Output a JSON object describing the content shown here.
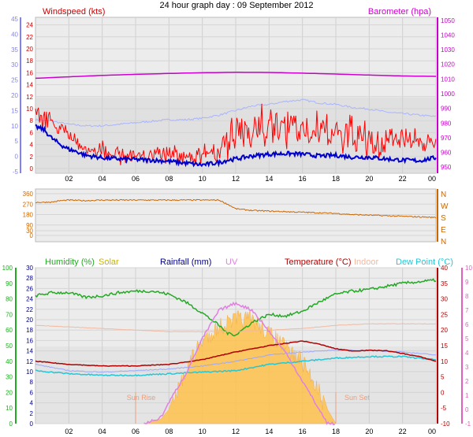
{
  "title": "24 hour graph day : 09 September 2012",
  "colors": {
    "wind": "#ff0000",
    "windAvg": "#0000cc",
    "barometer": "#cc00cc",
    "temp": "#b00000",
    "humidity": "#22aa22",
    "solar": "#c8b400",
    "rainfall": "#000080",
    "uv": "#e080e0",
    "indoor": "#f2b9a0",
    "dewpoint": "#22c8d8",
    "windDir": "#cc6600",
    "panelBg": "#ececec"
  },
  "chart_data": [
    {
      "type": "line",
      "title": "",
      "x_ticks": [
        "02",
        "04",
        "06",
        "08",
        "10",
        "12",
        "14",
        "16",
        "18",
        "20",
        "22",
        "00"
      ],
      "left_axis": {
        "label": "Windspeed (kts)",
        "range": [
          0,
          25
        ],
        "ticks": [
          0,
          2,
          4,
          6,
          8,
          10,
          12,
          14,
          16,
          18,
          20,
          22,
          24
        ]
      },
      "left_outer_axis": {
        "range": [
          -5,
          45
        ],
        "ticks": [
          -5,
          0,
          5,
          10,
          15,
          20,
          25,
          30,
          35,
          40,
          45
        ]
      },
      "right_axis": {
        "label": "Barometer (hpa)",
        "range": [
          949,
          1051
        ],
        "ticks": [
          950,
          960,
          970,
          980,
          990,
          1000,
          1010,
          1020,
          1030,
          1040,
          1050
        ]
      },
      "series": [
        {
          "name": "Windspeed (kts)",
          "style": "gust",
          "x": [
            0,
            0.5,
            1,
            1.5,
            2,
            2.5,
            3,
            4,
            5,
            6,
            7,
            8,
            9,
            10,
            11,
            11.5,
            12,
            13,
            14,
            15,
            16,
            17,
            18,
            19,
            20,
            21,
            22,
            23,
            24
          ],
          "values": [
            10,
            9,
            8.5,
            7,
            6,
            5,
            4,
            3.5,
            3,
            3,
            3,
            3,
            3,
            3,
            3.5,
            6,
            9,
            9.5,
            10,
            9.5,
            9.5,
            9,
            8.5,
            8,
            7,
            6.5,
            6,
            5.5,
            5
          ]
        },
        {
          "name": "Windspeed avg",
          "style": "average",
          "x": [
            0,
            0.5,
            1,
            1.5,
            2,
            2.5,
            3,
            4,
            5,
            6,
            7,
            8,
            9,
            10,
            11,
            11.5,
            12,
            13,
            14,
            15,
            16,
            17,
            18,
            19,
            20,
            21,
            22,
            23,
            24
          ],
          "values": [
            7,
            6.5,
            5,
            4,
            3.2,
            2.8,
            2.2,
            1.8,
            1.6,
            1.5,
            1.4,
            1.2,
            0.9,
            0.6,
            1,
            1.4,
            1.6,
            2.1,
            2.4,
            2.5,
            2.4,
            2.1,
            2.2,
            1.9,
            1.9,
            1.6,
            1.4,
            1.3,
            1.8
          ]
        },
        {
          "name": "Barometer (hpa)",
          "x": [
            0,
            2,
            4,
            6,
            8,
            10,
            12,
            14,
            16,
            18,
            20,
            22,
            24
          ],
          "values": [
            1010.5,
            1011.5,
            1012.5,
            1013.2,
            1013.8,
            1014.3,
            1014.6,
            1014.5,
            1014,
            1013.4,
            1012.7,
            1012.1,
            1011.8
          ]
        },
        {
          "name": "Light blue trace",
          "axis": "left_outer",
          "x": [
            0,
            1,
            2,
            3,
            4,
            5,
            6,
            7,
            8,
            9,
            10,
            11,
            12,
            13,
            14,
            15,
            16,
            17,
            18,
            19,
            20,
            21,
            22,
            23,
            24
          ],
          "values": [
            12,
            11.5,
            10.5,
            10,
            10,
            10.5,
            11,
            11.5,
            12,
            12,
            12.5,
            13.5,
            15,
            16.5,
            17,
            18,
            18.5,
            17.5,
            17,
            16,
            15.5,
            14.5,
            14,
            13.5,
            13
          ]
        }
      ]
    },
    {
      "type": "line",
      "title": "",
      "left_axis": {
        "range": [
          0,
          360
        ],
        "ticks": [
          0,
          30,
          90,
          180,
          270,
          360
        ]
      },
      "right_axis": {
        "tick_labels": [
          "N",
          "W",
          "S",
          "E",
          "N"
        ]
      },
      "series": [
        {
          "name": "Wind direction",
          "x": [
            0,
            1,
            1.5,
            2,
            3,
            4,
            5,
            6,
            7,
            8,
            9,
            10,
            11,
            11.5,
            12,
            13,
            14,
            15,
            16,
            17,
            18,
            19,
            20,
            21,
            22,
            23,
            24
          ],
          "values": [
            285,
            288,
            300,
            305,
            300,
            305,
            305,
            305,
            305,
            305,
            305,
            305,
            305,
            270,
            230,
            215,
            210,
            205,
            200,
            195,
            190,
            180,
            175,
            170,
            165,
            160,
            155
          ]
        }
      ]
    },
    {
      "type": "area",
      "title": "",
      "sunrise": "Sun Rise",
      "sunset": "Sun Set",
      "legend": [
        "Humidity (%)",
        "Solar",
        "Rainfall (mm)",
        "UV",
        "Temperature (°C)",
        "Indoor",
        "Dew Point (°C)"
      ],
      "axes": {
        "humidity": {
          "range": [
            0,
            100
          ],
          "ticks": [
            0,
            10,
            20,
            30,
            40,
            50,
            60,
            70,
            80,
            90,
            100
          ]
        },
        "rainfall": {
          "range": [
            0,
            30
          ],
          "ticks": [
            0,
            2,
            4,
            6,
            8,
            10,
            12,
            14,
            16,
            18,
            20,
            22,
            24,
            26,
            28,
            30
          ]
        },
        "temperature": {
          "range": [
            -10,
            40
          ],
          "ticks": [
            -10,
            -5,
            0,
            5,
            10,
            15,
            20,
            25,
            30,
            35,
            40
          ]
        },
        "uv": {
          "range": [
            -1,
            10
          ],
          "ticks": [
            -1,
            0,
            1,
            2,
            3,
            4,
            5,
            6,
            7,
            8,
            9,
            10
          ]
        }
      },
      "series": [
        {
          "name": "Humidity (%)",
          "axis": "humidity",
          "x": [
            0,
            1,
            2,
            3,
            4,
            5,
            6,
            7,
            8,
            9,
            10,
            11,
            11.5,
            12,
            12.5,
            13,
            14,
            15,
            16,
            17,
            18,
            19,
            20,
            21,
            22,
            23,
            24
          ],
          "values": [
            82,
            84,
            84,
            81,
            82,
            84,
            85,
            85,
            83,
            78,
            71,
            63,
            58,
            57,
            61,
            65,
            70,
            69,
            72,
            78,
            83,
            85,
            86,
            88,
            90,
            91,
            92
          ]
        },
        {
          "name": "Temperature (°C)",
          "axis": "temperature",
          "x": [
            0,
            2,
            4,
            6,
            8,
            10,
            12,
            14,
            16,
            17,
            18,
            19,
            20,
            21,
            22,
            23,
            24
          ],
          "values": [
            10,
            9,
            8.5,
            8.5,
            9,
            10.5,
            13,
            15,
            16.5,
            15.5,
            14,
            13.3,
            13.5,
            13.4,
            12.5,
            11.5,
            10
          ]
        },
        {
          "name": "Indoor",
          "axis": "temperature",
          "x": [
            0,
            2,
            4,
            6,
            8,
            10,
            12,
            14,
            16,
            18,
            20,
            22,
            24
          ],
          "values": [
            21.5,
            21,
            20.5,
            20,
            19.5,
            19.5,
            19.5,
            20,
            20.5,
            21.5,
            22,
            22,
            22
          ]
        },
        {
          "name": "Dew Point (°C)",
          "axis": "temperature",
          "x": [
            0,
            2,
            4,
            6,
            8,
            10,
            12,
            14,
            16,
            18,
            20,
            22,
            24
          ],
          "values": [
            7,
            6,
            5.5,
            5.5,
            6,
            6.5,
            7,
            9,
            10,
            11,
            11.5,
            11.5,
            10.5
          ]
        },
        {
          "name": "Light blue trace",
          "axis": "temperature",
          "x": [
            0,
            2,
            4,
            6,
            8,
            10,
            12,
            14,
            16,
            18,
            20,
            22,
            24
          ],
          "values": [
            9,
            7,
            6.5,
            7,
            7.5,
            8.5,
            10,
            12,
            13,
            13.5,
            13.5,
            13,
            12
          ]
        },
        {
          "name": "Solar",
          "axis": "uv",
          "x": [
            6.5,
            7.5,
            8,
            9,
            10,
            11,
            12,
            13,
            14,
            15,
            16,
            17,
            17.5,
            18
          ],
          "values": [
            -1,
            -0.7,
            0,
            3.5,
            5.5,
            6.5,
            7,
            7,
            6,
            5,
            4,
            2,
            0,
            -1
          ]
        },
        {
          "name": "UV",
          "axis": "uv",
          "x": [
            6.5,
            7.5,
            8,
            9,
            10,
            11,
            12,
            13,
            14,
            15,
            16,
            17,
            17.5,
            18
          ],
          "values": [
            -1,
            -0.6,
            0.5,
            2.5,
            5,
            7,
            7.5,
            7,
            5.5,
            4,
            2,
            0,
            -1,
            -1
          ]
        }
      ]
    }
  ]
}
